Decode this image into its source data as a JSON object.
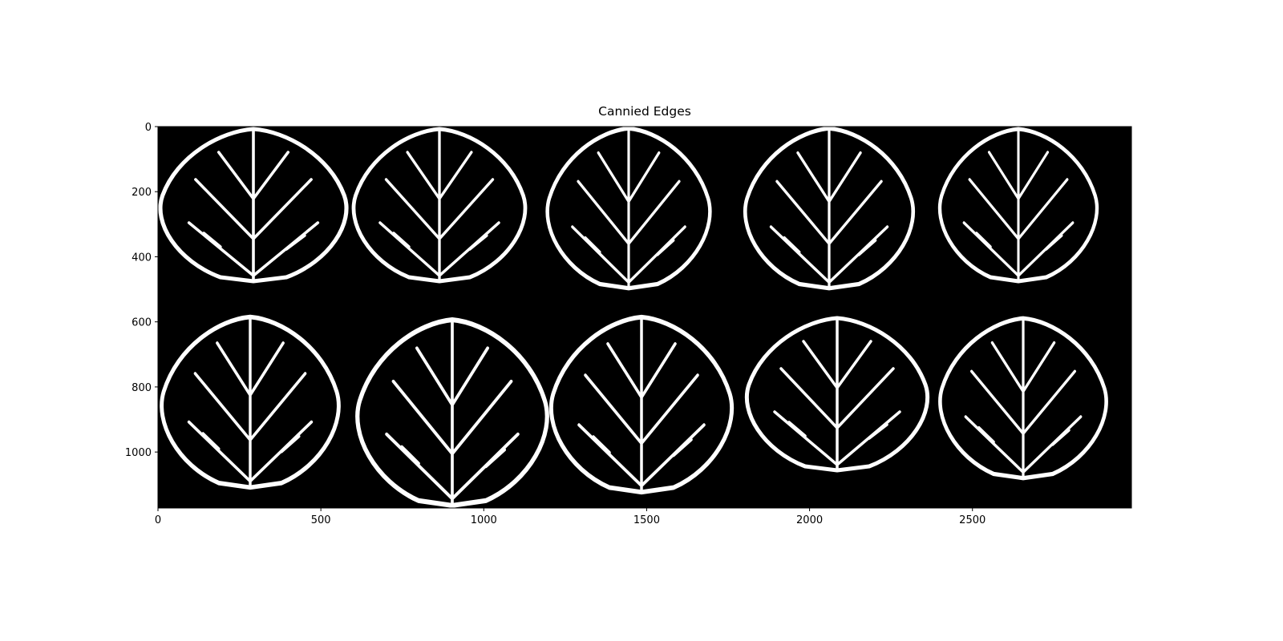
{
  "chart_data": {
    "type": "image",
    "title": "Cannied Edges",
    "xlim": [
      0,
      2988
    ],
    "ylim": [
      1172,
      0
    ],
    "xticks": [
      0,
      500,
      1000,
      1500,
      2000,
      2500
    ],
    "yticks": [
      0,
      200,
      400,
      600,
      800,
      1000
    ]
  }
}
